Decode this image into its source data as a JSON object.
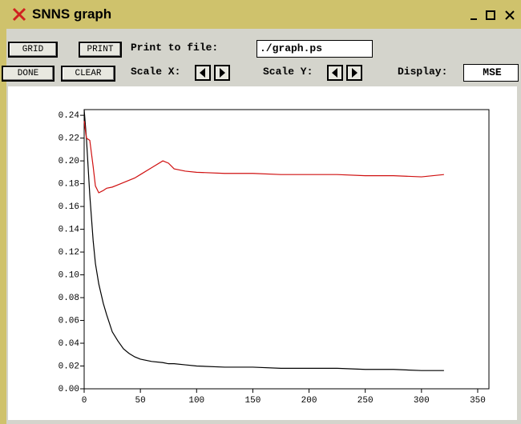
{
  "window": {
    "title": "SNNS graph"
  },
  "toolbar": {
    "grid_button": "GRID",
    "print_button": "PRINT",
    "print_label": "Print to file:",
    "print_file": "./graph.ps",
    "done_button": "DONE",
    "clear_button": "CLEAR",
    "scale_x_label": "Scale X:",
    "scale_y_label": "Scale Y:",
    "display_label": "Display:",
    "display_value": "MSE"
  },
  "chart_data": {
    "type": "line",
    "x": [
      0,
      2,
      5,
      8,
      10,
      13,
      17,
      20,
      25,
      30,
      35,
      40,
      45,
      50,
      60,
      70,
      75,
      80,
      90,
      100,
      125,
      150,
      175,
      200,
      225,
      250,
      275,
      300,
      320
    ],
    "series": [
      {
        "color": "#000000",
        "values": [
          0.245,
          0.22,
          0.17,
          0.13,
          0.11,
          0.092,
          0.075,
          0.065,
          0.05,
          0.042,
          0.035,
          0.031,
          0.028,
          0.026,
          0.024,
          0.023,
          0.022,
          0.022,
          0.021,
          0.02,
          0.019,
          0.019,
          0.018,
          0.018,
          0.018,
          0.017,
          0.017,
          0.016,
          0.016
        ]
      },
      {
        "color": "#d01010",
        "values": [
          0.235,
          0.22,
          0.218,
          0.195,
          0.178,
          0.172,
          0.174,
          0.176,
          0.177,
          0.179,
          0.181,
          0.183,
          0.185,
          0.188,
          0.194,
          0.2,
          0.198,
          0.193,
          0.191,
          0.19,
          0.189,
          0.189,
          0.188,
          0.188,
          0.188,
          0.187,
          0.187,
          0.186,
          0.188
        ]
      }
    ],
    "xlim": [
      0,
      360
    ],
    "ylim": [
      0,
      0.245
    ],
    "xticks": [
      0,
      50,
      100,
      150,
      200,
      250,
      300,
      350
    ],
    "yticks": [
      {
        "value": 0,
        "label": "0.00"
      },
      0.02,
      0.04,
      0.06,
      0.08,
      {
        "value": 0.1,
        "label": "0.10"
      },
      0.12,
      0.14,
      0.16,
      0.18,
      {
        "value": 0.2,
        "label": "0.20"
      },
      0.22,
      0.24
    ]
  }
}
